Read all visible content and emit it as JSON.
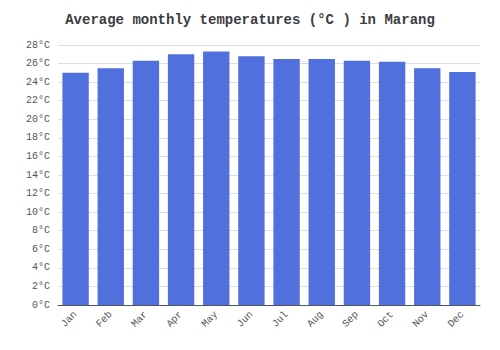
{
  "chart_data": {
    "type": "bar",
    "title": "Average monthly temperatures (°C ) in Marang",
    "categories": [
      "Jan",
      "Feb",
      "Mar",
      "Apr",
      "May",
      "Jun",
      "Jul",
      "Aug",
      "Sep",
      "Oct",
      "Nov",
      "Dec"
    ],
    "values": [
      25.0,
      25.5,
      26.3,
      27.0,
      27.3,
      26.8,
      26.5,
      26.5,
      26.3,
      26.2,
      25.5,
      25.1
    ],
    "ylim": [
      0,
      28
    ],
    "yticks": [
      {
        "value": 0,
        "label": "0°C"
      },
      {
        "value": 2,
        "label": "2°C"
      },
      {
        "value": 4,
        "label": "4°C"
      },
      {
        "value": 6,
        "label": "6°C"
      },
      {
        "value": 8,
        "label": "8°C"
      },
      {
        "value": 10,
        "label": "10°C"
      },
      {
        "value": 12,
        "label": "12°C"
      },
      {
        "value": 14,
        "label": "14°C"
      },
      {
        "value": 16,
        "label": "16°C"
      },
      {
        "value": 18,
        "label": "18°C"
      },
      {
        "value": 20,
        "label": "20°C"
      },
      {
        "value": 22,
        "label": "22°C"
      },
      {
        "value": 24,
        "label": "24°C"
      },
      {
        "value": 26,
        "label": "26°C"
      },
      {
        "value": 28,
        "label": "28°C"
      }
    ],
    "grid": true
  }
}
